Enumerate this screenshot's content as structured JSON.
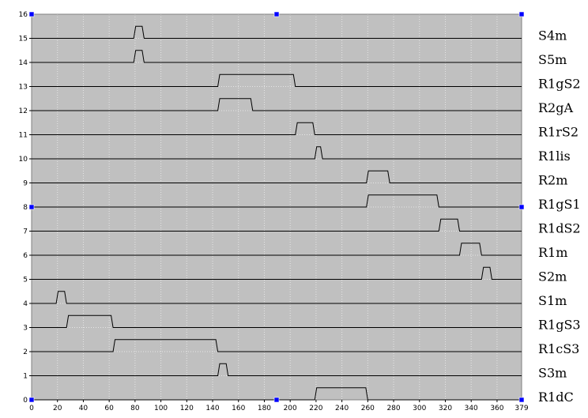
{
  "chart_data": {
    "type": "line",
    "title": "",
    "xlabel": "",
    "ylabel": "",
    "xlim": [
      0,
      379
    ],
    "ylim": [
      0,
      16
    ],
    "grid": true,
    "background": "#c0c0c0",
    "line_color": "#000000",
    "handle_color": "#0000ff",
    "x_ticks": [
      "0",
      "20",
      "40",
      "60",
      "80",
      "100",
      "120",
      "140",
      "160",
      "180",
      "200",
      "220",
      "240",
      "260",
      "280",
      "300",
      "320",
      "340",
      "360",
      "379"
    ],
    "y_ticks": [
      "0",
      "1",
      "2",
      "3",
      "4",
      "5",
      "6",
      "7",
      "8",
      "9",
      "10",
      "11",
      "12",
      "13",
      "14",
      "15",
      "16"
    ],
    "series": [
      {
        "name": "S4m",
        "baseline": 15,
        "pulses": [
          [
            79,
            87
          ]
        ]
      },
      {
        "name": "S5m",
        "baseline": 14,
        "pulses": [
          [
            79,
            87
          ]
        ]
      },
      {
        "name": "R1gS2",
        "baseline": 13,
        "pulses": [
          [
            144,
            204
          ]
        ]
      },
      {
        "name": "R2gA",
        "baseline": 12,
        "pulses": [
          [
            144,
            171
          ]
        ]
      },
      {
        "name": "R1rS2",
        "baseline": 11,
        "pulses": [
          [
            204,
            219
          ]
        ]
      },
      {
        "name": "R1lis",
        "baseline": 10,
        "pulses": [
          [
            219,
            225
          ]
        ]
      },
      {
        "name": "R2m",
        "baseline": 9,
        "pulses": [
          [
            259,
            277
          ]
        ]
      },
      {
        "name": "R1gS1",
        "baseline": 8,
        "pulses": [
          [
            259,
            315
          ]
        ]
      },
      {
        "name": "R1dS2",
        "baseline": 7,
        "pulses": [
          [
            315,
            331
          ]
        ]
      },
      {
        "name": "R1m",
        "baseline": 6,
        "pulses": [
          [
            331,
            348
          ]
        ]
      },
      {
        "name": "S2m",
        "baseline": 5,
        "pulses": [
          [
            348,
            356
          ]
        ]
      },
      {
        "name": "S1m",
        "baseline": 4,
        "pulses": [
          [
            19,
            27
          ]
        ]
      },
      {
        "name": "R1gS3",
        "baseline": 3,
        "pulses": [
          [
            27,
            63
          ]
        ]
      },
      {
        "name": "R1cS3",
        "baseline": 2,
        "pulses": [
          [
            63,
            144
          ]
        ]
      },
      {
        "name": "S3m",
        "baseline": 1,
        "pulses": [
          [
            144,
            152
          ]
        ]
      },
      {
        "name": "R1dC",
        "baseline": 0,
        "pulses": [
          [
            219,
            260
          ]
        ]
      }
    ]
  }
}
